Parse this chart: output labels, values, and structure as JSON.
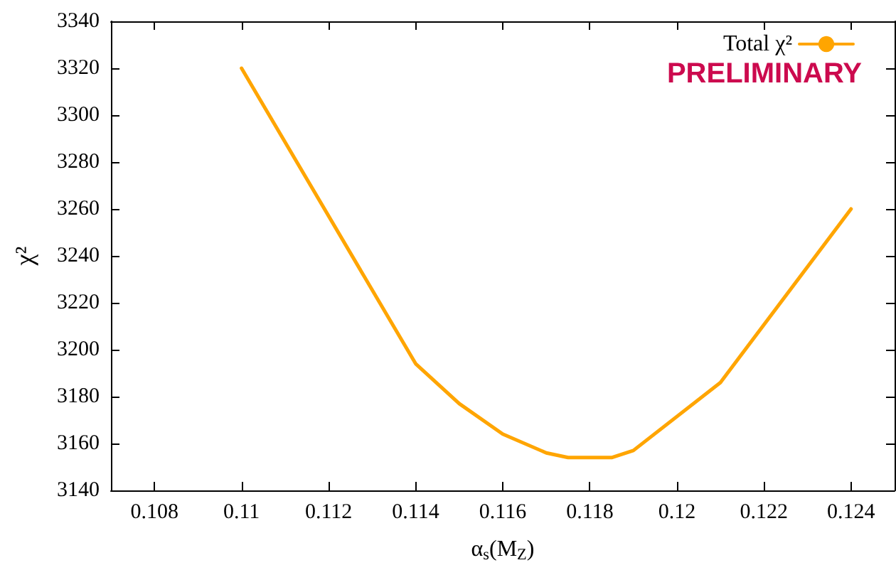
{
  "chart_data": {
    "type": "line",
    "xlabel": "α$_{s}$(M$_{Z}$)",
    "ylabel": "χ²",
    "x": [
      0.11,
      0.114,
      0.115,
      0.116,
      0.117,
      0.1175,
      0.1185,
      0.119,
      0.121,
      0.124
    ],
    "series": [
      {
        "name": "Total χ²",
        "color": "#ffa500",
        "values": [
          3320,
          3194,
          3177,
          3164,
          3156,
          3154,
          3154,
          3157,
          3186,
          3260
        ]
      }
    ],
    "xlim": [
      0.107,
      0.125
    ],
    "xticks": [
      0.108,
      0.11,
      0.112,
      0.114,
      0.116,
      0.118,
      0.12,
      0.122,
      0.124
    ],
    "ylim": [
      3140,
      3340
    ],
    "yticks": [
      3140,
      3160,
      3180,
      3200,
      3220,
      3240,
      3260,
      3280,
      3300,
      3320,
      3340
    ],
    "grid": false,
    "legend": "top right",
    "marker": "none",
    "line_style": "solid",
    "annotations": [
      "PRELIMINARY"
    ]
  }
}
